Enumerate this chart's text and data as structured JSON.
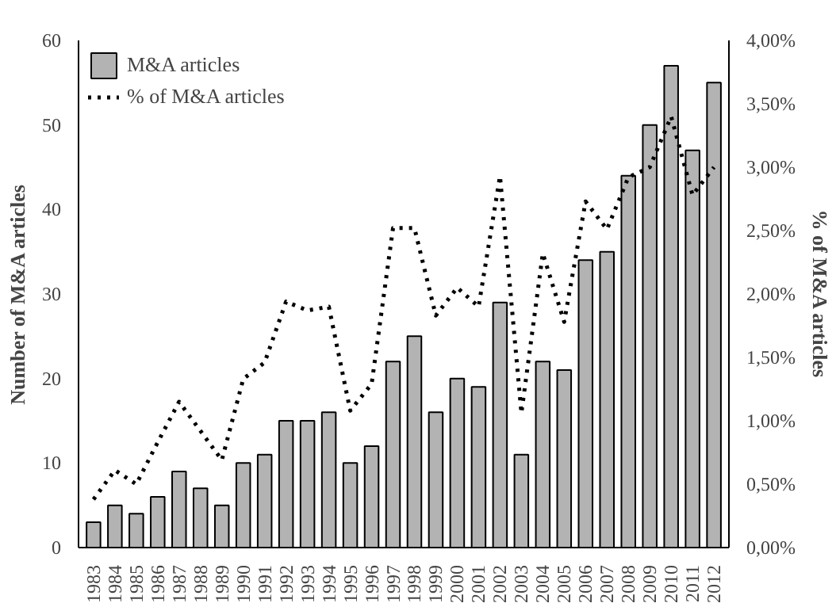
{
  "chart_data": {
    "type": "bar",
    "ylabel": "Number of M&A articles",
    "y2label": "% of M&A articles",
    "categories": [
      "1983",
      "1984",
      "1985",
      "1986",
      "1987",
      "1988",
      "1989",
      "1990",
      "1991",
      "1992",
      "1993",
      "1994",
      "1995",
      "1996",
      "1997",
      "1998",
      "1999",
      "2000",
      "2001",
      "2002",
      "2003",
      "2004",
      "2005",
      "2006",
      "2007",
      "2008",
      "2009",
      "2010",
      "2011",
      "2012"
    ],
    "series": [
      {
        "name": "M&A articles",
        "color": "#b3b3b3",
        "values": [
          3,
          5,
          4,
          6,
          9,
          7,
          5,
          10,
          11,
          15,
          15,
          16,
          10,
          12,
          22,
          25,
          16,
          20,
          19,
          29,
          11,
          22,
          21,
          34,
          35,
          44,
          50,
          57,
          47,
          55
        ]
      },
      {
        "name": "% of M&A articles",
        "type": "line",
        "axis": "y2",
        "color": "#000000",
        "line_style": "dotted",
        "values": [
          0.38,
          0.61,
          0.5,
          0.83,
          1.15,
          0.92,
          0.69,
          1.33,
          1.46,
          1.94,
          1.87,
          1.9,
          1.08,
          1.29,
          2.52,
          2.52,
          1.83,
          2.05,
          1.9,
          2.93,
          1.06,
          2.32,
          1.78,
          2.73,
          2.51,
          2.92,
          3.0,
          3.4,
          2.78,
          3.0
        ]
      }
    ],
    "ylim": [
      0,
      60
    ],
    "yticks": [
      0,
      10,
      20,
      30,
      40,
      50,
      60
    ],
    "y2lim": [
      0,
      4
    ],
    "y2ticks": [
      {
        "value": 0,
        "label": "0,00%"
      },
      {
        "value": 0.5,
        "label": "0,50%"
      },
      {
        "value": 1,
        "label": "1,00%"
      },
      {
        "value": 1.5,
        "label": "1,50%"
      },
      {
        "value": 2,
        "label": "2,00%"
      },
      {
        "value": 2.5,
        "label": "2,50%"
      },
      {
        "value": 3,
        "label": "3,00%"
      },
      {
        "value": 3.5,
        "label": "3,50%"
      },
      {
        "value": 4,
        "label": "4,00%"
      }
    ],
    "grid": false,
    "legend": "top left",
    "marker": "none"
  }
}
